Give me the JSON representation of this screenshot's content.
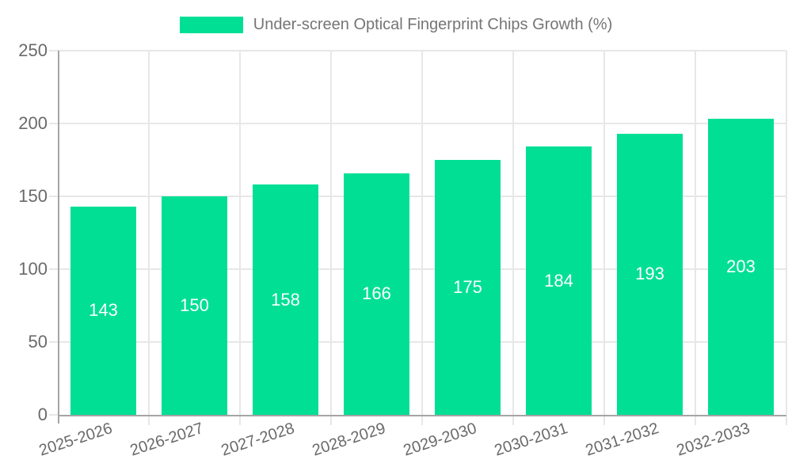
{
  "chart_data": {
    "type": "bar",
    "title": "Under-screen Optical Fingerprint Chips Growth (%)",
    "categories": [
      "2025-2026",
      "2026-2027",
      "2027-2028",
      "2028-2029",
      "2029-2030",
      "2030-2031",
      "2031-2032",
      "2032-2033"
    ],
    "values": [
      143,
      150,
      158,
      166,
      175,
      184,
      193,
      203
    ],
    "xlabel": "",
    "ylabel": "",
    "ylim": [
      0,
      250
    ],
    "yticks": [
      0,
      50,
      100,
      150,
      200,
      250
    ],
    "grid": true,
    "legend_position": "top",
    "bar_label_position": "inside-center",
    "colors": {
      "bar": "#00df94",
      "bar_label": "#ffffff",
      "gridline": "#e7e7e7",
      "axis_line": "#a5a5a5",
      "tick_label": "#6a6a6a",
      "legend_text": "#757575",
      "background": "#ffffff"
    }
  }
}
